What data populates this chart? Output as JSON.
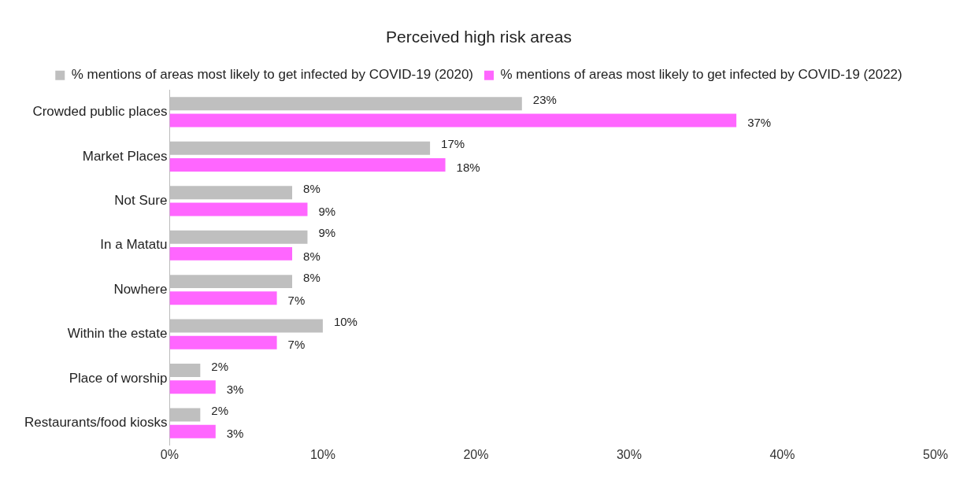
{
  "chart_data": {
    "type": "bar",
    "orientation": "horizontal",
    "title": "Perceived high risk areas",
    "categories": [
      "Crowded public places",
      "Market Places",
      "Not Sure",
      "In a Matatu",
      "Nowhere",
      "Within the estate",
      "Place of worship",
      "Restaurants/food kiosks"
    ],
    "series": [
      {
        "name": "% mentions of areas most likely to get infected by COVID-19 (2020)",
        "color": "#bfbfbf",
        "values": [
          23,
          17,
          8,
          9,
          8,
          10,
          2,
          2
        ],
        "value_labels": [
          "23%",
          "17%",
          "8%",
          "9%",
          "8%",
          "10%",
          "2%",
          "2%"
        ]
      },
      {
        "name": "% mentions of areas most likely to get infected by COVID-19 (2022)",
        "color": "#ff66ff",
        "values": [
          37,
          18,
          9,
          8,
          7,
          7,
          3,
          3
        ],
        "value_labels": [
          "37%",
          "18%",
          "9%",
          "8%",
          "7%",
          "7%",
          "3%",
          "3%"
        ]
      }
    ],
    "xlim": [
      0,
      50
    ],
    "xticks": [
      {
        "value": 0,
        "label": "0%"
      },
      {
        "value": 10,
        "label": "10%"
      },
      {
        "value": 20,
        "label": "20%"
      },
      {
        "value": 30,
        "label": "30%"
      },
      {
        "value": 40,
        "label": "40%"
      },
      {
        "value": 50,
        "label": "50%"
      }
    ],
    "legend": "top",
    "grid": false
  }
}
